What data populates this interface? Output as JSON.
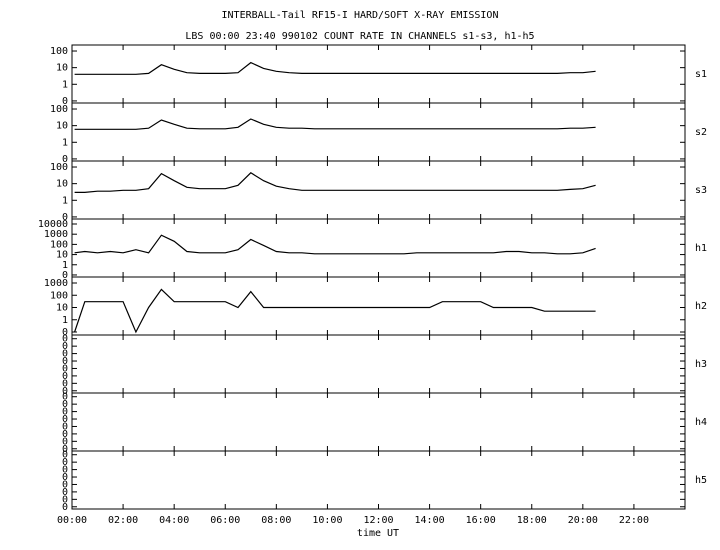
{
  "chart_data": {
    "type": "line",
    "title": "INTERBALL-Tail RF15-I HARD/SOFT X-RAY EMISSION",
    "subtitle": "LBS 00:00 23:40 990102  COUNT RATE IN CHANNELS s1-s3, h1-h5",
    "xlabel": "time UT",
    "xlim": [
      0,
      24
    ],
    "xticks": [
      {
        "value": 0,
        "label": "00:00"
      },
      {
        "value": 2,
        "label": "02:00"
      },
      {
        "value": 4,
        "label": "04:00"
      },
      {
        "value": 6,
        "label": "06:00"
      },
      {
        "value": 8,
        "label": "08:00"
      },
      {
        "value": 10,
        "label": "10:00"
      },
      {
        "value": 12,
        "label": "12:00"
      },
      {
        "value": 14,
        "label": "14:00"
      },
      {
        "value": 16,
        "label": "16:00"
      },
      {
        "value": 18,
        "label": "18:00"
      },
      {
        "value": 20,
        "label": "20:00"
      },
      {
        "value": 22,
        "label": "22:00"
      }
    ],
    "color": "#000000",
    "panels": [
      {
        "name": "s1",
        "yscale": "log",
        "ylim": [
          0.075,
          230
        ],
        "yticks": [
          {
            "value": 0.1,
            "label": "0"
          },
          1,
          10,
          100
        ],
        "x": [
          0.1,
          0.5,
          1,
          1.5,
          2,
          2.5,
          3,
          3.5,
          4,
          4.5,
          5,
          5.5,
          6,
          6.5,
          7,
          7.5,
          8,
          8.5,
          9,
          9.5,
          10,
          10.5,
          11,
          11.5,
          12,
          12.5,
          13,
          13.5,
          14,
          14.5,
          15,
          15.5,
          16,
          16.5,
          17,
          17.5,
          18,
          18.5,
          19,
          19.5,
          20,
          20.5
        ],
        "values": [
          4,
          4,
          4,
          4,
          4,
          4,
          4.5,
          15,
          8,
          5,
          4.5,
          4.5,
          4.5,
          5,
          20,
          9,
          6,
          5,
          4.5,
          4.5,
          4.5,
          4.5,
          4.5,
          4.5,
          4.5,
          4.5,
          4.5,
          4.5,
          4.5,
          4.5,
          4.5,
          4.5,
          4.5,
          4.5,
          4.5,
          4.5,
          4.5,
          4.5,
          4.5,
          5,
          5,
          6
        ]
      },
      {
        "name": "s2",
        "yscale": "log",
        "ylim": [
          0.075,
          230
        ],
        "yticks": [
          {
            "value": 0.1,
            "label": "0"
          },
          1,
          10,
          100
        ],
        "x": [
          0.1,
          0.5,
          1,
          1.5,
          2,
          2.5,
          3,
          3.5,
          4,
          4.5,
          5,
          5.5,
          6,
          6.5,
          7,
          7.5,
          8,
          8.5,
          9,
          9.5,
          10,
          10.5,
          11,
          11.5,
          12,
          12.5,
          13,
          13.5,
          14,
          14.5,
          15,
          15.5,
          16,
          16.5,
          17,
          17.5,
          18,
          18.5,
          19,
          19.5,
          20,
          20.5
        ],
        "values": [
          6,
          6,
          6,
          6,
          6,
          6,
          7,
          22,
          12,
          7,
          6.5,
          6.5,
          6.5,
          8,
          25,
          12,
          8,
          7,
          7,
          6.5,
          6.5,
          6.5,
          6.5,
          6.5,
          6.5,
          6.5,
          6.5,
          6.5,
          6.5,
          6.5,
          6.5,
          6.5,
          6.5,
          6.5,
          6.5,
          6.5,
          6.5,
          6.5,
          6.5,
          7,
          7,
          8
        ]
      },
      {
        "name": "s3",
        "yscale": "log",
        "ylim": [
          0.075,
          230
        ],
        "yticks": [
          {
            "value": 0.1,
            "label": "0"
          },
          1,
          10,
          100
        ],
        "x": [
          0.1,
          0.5,
          1,
          1.5,
          2,
          2.5,
          3,
          3.5,
          4,
          4.5,
          5,
          5.5,
          6,
          6.5,
          7,
          7.5,
          8,
          8.5,
          9,
          9.5,
          10,
          10.5,
          11,
          11.5,
          12,
          12.5,
          13,
          13.5,
          14,
          14.5,
          15,
          15.5,
          16,
          16.5,
          17,
          17.5,
          18,
          18.5,
          19,
          19.5,
          20,
          20.5
        ],
        "values": [
          3,
          3,
          3.5,
          3.5,
          4,
          4,
          5,
          40,
          15,
          6,
          5,
          5,
          5,
          8,
          45,
          15,
          7,
          5,
          4,
          4,
          4,
          4,
          4,
          4,
          4,
          4,
          4,
          4,
          4,
          4,
          4,
          4,
          4,
          4,
          4,
          4,
          4,
          4,
          4,
          4.5,
          5,
          8
        ]
      },
      {
        "name": "h1",
        "yscale": "log",
        "ylim": [
          0.063,
          31000
        ],
        "yticks": [
          {
            "value": 0.1,
            "label": "0"
          },
          1,
          10,
          100,
          1000,
          10000
        ],
        "x": [
          0.1,
          0.5,
          1,
          1.5,
          2,
          2.5,
          3,
          3.5,
          4,
          4.5,
          5,
          5.5,
          6,
          6.5,
          7,
          7.5,
          8,
          8.5,
          9,
          9.5,
          10,
          10.5,
          11,
          11.5,
          12,
          12.5,
          13,
          13.5,
          14,
          14.5,
          15,
          15.5,
          16,
          16.5,
          17,
          17.5,
          18,
          18.5,
          19,
          19.5,
          20,
          20.5
        ],
        "values": [
          15,
          20,
          15,
          20,
          15,
          30,
          15,
          800,
          200,
          20,
          15,
          15,
          15,
          30,
          300,
          80,
          20,
          15,
          15,
          12,
          12,
          12,
          12,
          12,
          12,
          12,
          12,
          15,
          15,
          15,
          15,
          15,
          15,
          15,
          20,
          20,
          15,
          15,
          12,
          12,
          15,
          40
        ]
      },
      {
        "name": "h2",
        "yscale": "log",
        "ylim": [
          0.057,
          3090
        ],
        "yticks": [
          {
            "value": 0.1,
            "label": "0"
          },
          1,
          10,
          100,
          1000
        ],
        "x": [
          0.1,
          0.5,
          1,
          1.5,
          2,
          2.5,
          3,
          3.5,
          4,
          4.5,
          5,
          5.5,
          6,
          6.5,
          7,
          7.5,
          8,
          8.5,
          9,
          9.5,
          10,
          10.5,
          11,
          11.5,
          12,
          12.5,
          13,
          13.5,
          14,
          14.5,
          15,
          15.5,
          16,
          16.5,
          17,
          17.5,
          18,
          18.5,
          19,
          19.5,
          20,
          20.5
        ],
        "values": [
          0.1,
          30,
          30,
          30,
          30,
          0.1,
          10,
          300,
          30,
          30,
          30,
          30,
          30,
          10,
          200,
          10,
          10,
          10,
          10,
          10,
          10,
          10,
          10,
          10,
          10,
          10,
          10,
          10,
          10,
          30,
          30,
          30,
          30,
          10,
          10,
          10,
          10,
          5,
          5,
          5,
          5,
          5
        ]
      },
      {
        "name": "h3",
        "yscale": "linear",
        "ylim": [
          -3e-06,
          7.5e-05
        ],
        "yticks": [
          0,
          {
            "value": 1e-05,
            "label": "0"
          },
          {
            "value": 2e-05,
            "label": "0"
          },
          {
            "value": 3e-05,
            "label": "0"
          },
          {
            "value": 4e-05,
            "label": "0"
          },
          {
            "value": 5e-05,
            "label": "0"
          },
          {
            "value": 6e-05,
            "label": "0"
          },
          {
            "value": 7e-05,
            "label": "0"
          }
        ]
      },
      {
        "name": "h4",
        "yscale": "linear",
        "ylim": [
          -3e-06,
          7.5e-05
        ],
        "yticks": [
          0,
          {
            "value": 1e-05,
            "label": "0"
          },
          {
            "value": 2e-05,
            "label": "0"
          },
          {
            "value": 3e-05,
            "label": "0"
          },
          {
            "value": 4e-05,
            "label": "0"
          },
          {
            "value": 5e-05,
            "label": "0"
          },
          {
            "value": 6e-05,
            "label": "0"
          },
          {
            "value": 7e-05,
            "label": "0"
          }
        ]
      },
      {
        "name": "h5",
        "yscale": "linear",
        "ylim": [
          -3e-06,
          7.5e-05
        ],
        "yticks": [
          0,
          {
            "value": 1e-05,
            "label": "0"
          },
          {
            "value": 2e-05,
            "label": "0"
          },
          {
            "value": 3e-05,
            "label": "0"
          },
          {
            "value": 4e-05,
            "label": "0"
          },
          {
            "value": 5e-05,
            "label": "0"
          },
          {
            "value": 6e-05,
            "label": "0"
          },
          {
            "value": 7e-05,
            "label": "0"
          }
        ]
      }
    ]
  }
}
